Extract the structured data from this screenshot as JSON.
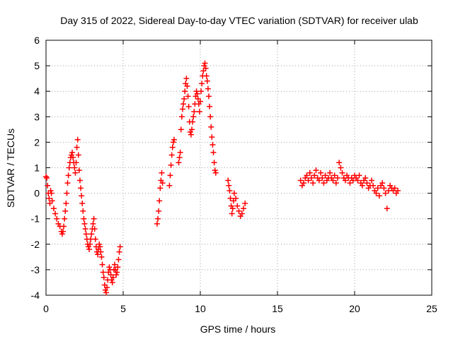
{
  "chart_data": {
    "type": "scatter",
    "title": "Day 315 of 2022, Sidereal Day-to-day VTEC variation (SDTVAR) for receiver ulab",
    "xlabel": "GPS time / hours",
    "ylabel": "SDTVAR / TECUs",
    "xlim": [
      0,
      25
    ],
    "ylim": [
      -4,
      6
    ],
    "xticks": [
      "0",
      "5",
      "10",
      "15",
      "20",
      "25"
    ],
    "yticks": [
      "-4",
      "-3",
      "-2",
      "-1",
      "0",
      "1",
      "2",
      "3",
      "4",
      "5",
      "6"
    ],
    "grid": true,
    "marker": "+",
    "color": "#ff0000",
    "series": [
      {
        "name": "SDTVAR",
        "x": [
          0.0,
          0.05,
          0.1,
          0.15,
          0.2,
          0.25,
          0.3,
          0.35,
          0.4,
          0.5,
          0.6,
          0.7,
          0.8,
          0.9,
          1.0,
          1.05,
          1.1,
          1.15,
          1.2,
          1.25,
          1.3,
          1.35,
          1.4,
          1.45,
          1.5,
          1.55,
          1.6,
          1.65,
          1.7,
          1.75,
          1.8,
          1.85,
          1.9,
          1.95,
          2.0,
          2.05,
          2.1,
          2.15,
          2.2,
          2.25,
          2.3,
          2.35,
          2.4,
          2.45,
          2.5,
          2.55,
          2.6,
          2.65,
          2.7,
          2.75,
          2.8,
          2.85,
          2.9,
          2.95,
          3.0,
          3.05,
          3.1,
          3.15,
          3.2,
          3.25,
          3.3,
          3.35,
          3.4,
          3.45,
          3.5,
          3.55,
          3.6,
          3.65,
          3.7,
          3.75,
          3.8,
          3.85,
          3.9,
          3.95,
          4.0,
          4.05,
          4.1,
          4.15,
          4.2,
          4.25,
          4.3,
          4.35,
          4.4,
          4.45,
          4.5,
          4.55,
          4.6,
          4.65,
          4.7,
          4.75,
          4.8,
          7.2,
          7.25,
          7.3,
          7.35,
          7.4,
          7.45,
          7.5,
          7.55,
          8.0,
          8.05,
          8.1,
          8.15,
          8.2,
          8.25,
          8.3,
          8.6,
          8.65,
          8.7,
          8.75,
          8.8,
          8.85,
          8.9,
          8.95,
          9.0,
          9.05,
          9.1,
          9.15,
          9.2,
          9.25,
          9.3,
          9.35,
          9.4,
          9.45,
          9.5,
          9.55,
          9.6,
          9.65,
          9.7,
          9.75,
          9.8,
          9.85,
          9.9,
          9.95,
          10.0,
          10.05,
          10.1,
          10.15,
          10.2,
          10.25,
          10.3,
          10.35,
          10.4,
          10.45,
          10.5,
          10.55,
          10.6,
          10.65,
          10.7,
          10.75,
          10.8,
          10.85,
          10.9,
          10.95,
          11.0,
          11.8,
          11.85,
          11.9,
          11.95,
          12.0,
          12.05,
          12.1,
          12.15,
          12.2,
          12.3,
          12.4,
          12.5,
          12.6,
          12.7,
          12.8,
          12.9,
          16.5,
          16.6,
          16.7,
          16.8,
          16.9,
          17.0,
          17.1,
          17.2,
          17.3,
          17.4,
          17.5,
          17.6,
          17.7,
          17.8,
          17.9,
          18.0,
          18.1,
          18.2,
          18.3,
          18.4,
          18.5,
          18.6,
          18.7,
          18.8,
          18.9,
          19.0,
          19.1,
          19.2,
          19.3,
          19.4,
          19.5,
          19.6,
          19.7,
          19.8,
          19.9,
          20.0,
          20.1,
          20.2,
          20.3,
          20.4,
          20.5,
          20.6,
          20.7,
          20.8,
          20.9,
          21.0,
          21.1,
          21.2,
          21.3,
          21.4,
          21.5,
          21.6,
          21.7,
          21.8,
          21.9,
          22.0,
          22.1,
          22.2,
          22.3,
          22.4,
          22.5,
          22.6,
          22.7,
          22.8
        ],
        "y": [
          0.65,
          0.6,
          0.3,
          0.0,
          -0.2,
          -0.4,
          0.1,
          0.0,
          -0.3,
          -0.6,
          -0.8,
          -1.0,
          -1.2,
          -1.3,
          -1.5,
          -1.6,
          -1.5,
          -1.3,
          -1.0,
          -0.7,
          -0.4,
          0.0,
          0.4,
          0.7,
          1.0,
          1.2,
          1.4,
          1.5,
          1.6,
          1.4,
          1.2,
          1.0,
          0.8,
          1.2,
          1.8,
          2.1,
          1.5,
          0.9,
          0.5,
          0.2,
          -0.1,
          -0.4,
          -0.7,
          -1.0,
          -1.2,
          -1.4,
          -1.6,
          -1.8,
          -2.0,
          -2.1,
          -2.2,
          -2.0,
          -1.8,
          -1.6,
          -1.4,
          -1.2,
          -1.0,
          -1.4,
          -1.8,
          -2.1,
          -2.3,
          -2.4,
          -2.2,
          -2.0,
          -2.1,
          -2.3,
          -2.5,
          -2.8,
          -3.1,
          -3.3,
          -3.6,
          -3.8,
          -3.9,
          -3.7,
          -3.4,
          -3.1,
          -2.9,
          -3.0,
          -3.2,
          -3.4,
          -3.5,
          -3.3,
          -3.0,
          -2.8,
          -3.0,
          -3.2,
          -3.1,
          -2.9,
          -2.6,
          -2.3,
          -2.1,
          -1.2,
          -1.0,
          -0.7,
          -0.3,
          0.2,
          0.5,
          0.8,
          0.4,
          0.3,
          0.7,
          1.1,
          1.5,
          1.8,
          2.0,
          2.1,
          1.2,
          1.4,
          1.6,
          2.5,
          3.0,
          3.3,
          3.5,
          3.7,
          4.0,
          4.3,
          4.5,
          4.2,
          3.8,
          3.4,
          2.8,
          2.4,
          2.3,
          2.5,
          2.8,
          3.0,
          3.2,
          3.5,
          3.8,
          4.0,
          3.9,
          3.7,
          3.5,
          3.2,
          3.6,
          4.0,
          4.3,
          4.6,
          4.8,
          5.0,
          5.1,
          4.9,
          4.6,
          4.4,
          4.1,
          3.8,
          3.4,
          3.0,
          2.6,
          2.2,
          1.9,
          1.6,
          1.2,
          0.9,
          0.8,
          0.5,
          0.3,
          0.1,
          -0.2,
          -0.5,
          -0.8,
          -0.6,
          -0.3,
          0.0,
          -0.2,
          -0.5,
          -0.7,
          -0.9,
          -0.8,
          -0.6,
          -0.4,
          0.5,
          0.3,
          0.4,
          0.6,
          0.7,
          0.5,
          0.8,
          0.6,
          0.4,
          0.7,
          0.9,
          0.6,
          0.5,
          0.8,
          0.6,
          0.4,
          0.7,
          0.5,
          0.6,
          0.8,
          0.6,
          0.5,
          0.7,
          0.4,
          0.6,
          1.2,
          1.0,
          0.8,
          0.6,
          0.5,
          0.7,
          0.6,
          0.4,
          0.6,
          0.5,
          0.7,
          0.6,
          0.5,
          0.7,
          0.4,
          0.3,
          0.5,
          0.6,
          0.4,
          0.2,
          0.3,
          0.5,
          0.3,
          0.1,
          0.0,
          0.2,
          -0.1,
          0.3,
          0.4,
          0.2,
          0.0,
          -0.6,
          0.1,
          0.3,
          0.2,
          0.1,
          0.2,
          0.0,
          0.1
        ]
      }
    ]
  }
}
